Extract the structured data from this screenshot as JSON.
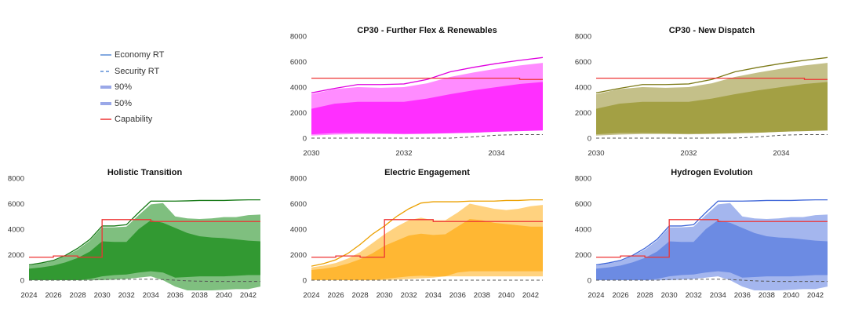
{
  "colors": {
    "capability": "#ee3333",
    "economy_dash": "#555555"
  },
  "legend": {
    "items": [
      {
        "label": "Economy RT",
        "style": "line",
        "color": "#5b8ed6"
      },
      {
        "label": "Security RT",
        "style": "dash",
        "color": "#5b8ed6"
      },
      {
        "label": "90%",
        "style": "thick",
        "color": "#9aa8e8"
      },
      {
        "label": "50%",
        "style": "thick",
        "color": "#9aa8e8"
      },
      {
        "label": "Capability",
        "style": "line",
        "color": "#ee3333"
      }
    ]
  },
  "chart_data": [
    {
      "type": "area",
      "title": "CP30 - Further Flex & Renewables",
      "xlim": [
        2030,
        2035
      ],
      "ylim": [
        0,
        8000
      ],
      "xticks": [
        2030,
        2032,
        2034
      ],
      "yticks": [
        0,
        2000,
        4000,
        6000,
        8000
      ],
      "colors": {
        "band90": "#ff8cff",
        "band50": "#ff2fff",
        "line": "#e000e0"
      },
      "x": [
        2030,
        2030.5,
        2031,
        2031.5,
        2032,
        2032.5,
        2033,
        2033.5,
        2034,
        2034.5,
        2035
      ],
      "economy_rt": [
        3550,
        3900,
        4200,
        4200,
        4250,
        4600,
        5200,
        5550,
        5850,
        6100,
        6320
      ],
      "p90_lower": [
        200,
        280,
        320,
        320,
        300,
        330,
        380,
        430,
        500,
        580,
        650
      ],
      "p90_upper": [
        3450,
        3850,
        4000,
        3950,
        4000,
        4300,
        4800,
        5150,
        5450,
        5700,
        5900
      ],
      "p50_lower": [
        300,
        400,
        400,
        380,
        350,
        360,
        390,
        420,
        500,
        550,
        600
      ],
      "p50_upper": [
        2300,
        2700,
        2850,
        2850,
        2850,
        3100,
        3450,
        3750,
        4000,
        4250,
        4400
      ],
      "security_rt": [
        0,
        0,
        0,
        0,
        0,
        0,
        0,
        100,
        230,
        280,
        280
      ],
      "capability": {
        "x": [
          2030,
          2034.5,
          2034.5,
          2035
        ],
        "y": [
          4700,
          4700,
          4600,
          4600
        ]
      }
    },
    {
      "type": "area",
      "title": "CP30 - New Dispatch",
      "xlim": [
        2030,
        2035
      ],
      "ylim": [
        0,
        8000
      ],
      "xticks": [
        2030,
        2032,
        2034
      ],
      "yticks": [
        0,
        2000,
        4000,
        6000,
        8000
      ],
      "colors": {
        "band90": "#c4c089",
        "band50": "#a3a044",
        "line": "#7c7a18"
      },
      "x": [
        2030,
        2030.5,
        2031,
        2031.5,
        2032,
        2032.5,
        2033,
        2033.5,
        2034,
        2034.5,
        2035
      ],
      "economy_rt": [
        3550,
        3900,
        4200,
        4200,
        4250,
        4600,
        5200,
        5550,
        5850,
        6100,
        6320
      ],
      "p90_lower": [
        200,
        280,
        320,
        320,
        300,
        330,
        380,
        430,
        500,
        580,
        650
      ],
      "p90_upper": [
        3450,
        3850,
        4000,
        3950,
        4000,
        4300,
        4800,
        5150,
        5450,
        5700,
        5900
      ],
      "p50_lower": [
        300,
        400,
        400,
        380,
        350,
        360,
        390,
        420,
        500,
        550,
        600
      ],
      "p50_upper": [
        2300,
        2700,
        2850,
        2850,
        2850,
        3100,
        3450,
        3750,
        4000,
        4250,
        4400
      ],
      "security_rt": [
        0,
        0,
        0,
        0,
        0,
        0,
        0,
        100,
        230,
        280,
        280
      ],
      "capability": {
        "x": [
          2030,
          2034.5,
          2034.5,
          2035
        ],
        "y": [
          4700,
          4700,
          4600,
          4600
        ]
      }
    },
    {
      "type": "area",
      "title": "Holistic Transition",
      "xlim": [
        2024,
        2043
      ],
      "ylim": [
        0,
        8000
      ],
      "xticks": [
        2024,
        2026,
        2028,
        2030,
        2032,
        2034,
        2036,
        2038,
        2040,
        2042
      ],
      "yticks": [
        0,
        2000,
        4000,
        6000,
        8000
      ],
      "colors": {
        "band90": "#7fbf7f",
        "band50": "#329932",
        "line": "#147814"
      },
      "x": [
        2024,
        2025,
        2026,
        2027,
        2028,
        2029,
        2030,
        2031,
        2032,
        2033,
        2034,
        2035,
        2036,
        2037,
        2038,
        2039,
        2040,
        2041,
        2042,
        2043
      ],
      "economy_rt": [
        1200,
        1350,
        1550,
        1950,
        2500,
        3200,
        4250,
        4250,
        4350,
        5300,
        6200,
        6200,
        6200,
        6220,
        6250,
        6250,
        6250,
        6280,
        6300,
        6300
      ],
      "p90_lower": [
        0,
        0,
        0,
        0,
        0,
        0,
        0,
        50,
        100,
        200,
        300,
        0,
        -500,
        -800,
        -800,
        -800,
        -750,
        -700,
        -700,
        -500
      ],
      "p90_upper": [
        1150,
        1300,
        1500,
        1900,
        2400,
        3100,
        4150,
        4150,
        4200,
        5100,
        5950,
        6050,
        5000,
        4850,
        4800,
        4850,
        4950,
        4950,
        5100,
        5150
      ],
      "p50_lower": [
        0,
        0,
        0,
        0,
        0,
        100,
        300,
        400,
        450,
        600,
        700,
        600,
        200,
        250,
        300,
        300,
        300,
        350,
        400,
        400
      ],
      "p50_upper": [
        900,
        1000,
        1150,
        1400,
        1750,
        2250,
        3050,
        3000,
        3000,
        4000,
        4700,
        4500,
        4100,
        3700,
        3450,
        3350,
        3300,
        3200,
        3100,
        3050
      ],
      "security_rt": [
        0,
        0,
        0,
        0,
        0,
        0,
        50,
        60,
        70,
        80,
        80,
        50,
        0,
        -50,
        -80,
        -100,
        -100,
        -100,
        -100,
        -100
      ],
      "capability": {
        "x": [
          2024,
          2026,
          2026,
          2028,
          2028,
          2030,
          2030,
          2034,
          2034,
          2043
        ],
        "y": [
          1800,
          1800,
          1900,
          1900,
          1800,
          1800,
          4750,
          4750,
          4600,
          4600
        ]
      }
    },
    {
      "type": "area",
      "title": "Electric Engagement",
      "xlim": [
        2024,
        2043
      ],
      "ylim": [
        0,
        8000
      ],
      "xticks": [
        2024,
        2026,
        2028,
        2030,
        2032,
        2034,
        2036,
        2038,
        2040,
        2042
      ],
      "yticks": [
        0,
        2000,
        4000,
        6000,
        8000
      ],
      "colors": {
        "band90": "#ffd27f",
        "band50": "#ffb733",
        "line": "#eba000"
      },
      "x": [
        2024,
        2025,
        2026,
        2027,
        2028,
        2029,
        2030,
        2031,
        2032,
        2033,
        2034,
        2035,
        2036,
        2037,
        2038,
        2039,
        2040,
        2041,
        2042,
        2043
      ],
      "economy_rt": [
        1100,
        1300,
        1600,
        2100,
        2800,
        3600,
        4250,
        5000,
        5600,
        6050,
        6150,
        6150,
        6150,
        6200,
        6200,
        6200,
        6250,
        6250,
        6300,
        6300
      ],
      "p90_lower": [
        0,
        0,
        0,
        0,
        0,
        0,
        0,
        50,
        100,
        150,
        200,
        300,
        300,
        300,
        300,
        300,
        300,
        300,
        300,
        300
      ],
      "p90_upper": [
        1000,
        1150,
        1350,
        1700,
        2200,
        2900,
        3600,
        4200,
        4700,
        4900,
        4700,
        4700,
        5300,
        6000,
        5800,
        5600,
        5500,
        5600,
        5800,
        5900
      ],
      "p50_lower": [
        0,
        0,
        0,
        0,
        0,
        0,
        100,
        200,
        300,
        350,
        300,
        300,
        600,
        700,
        700,
        700,
        700,
        700,
        700,
        700
      ],
      "p50_upper": [
        800,
        900,
        1050,
        1300,
        1650,
        2100,
        2700,
        3100,
        3500,
        3650,
        3550,
        3600,
        4200,
        4800,
        4700,
        4500,
        4400,
        4300,
        4200,
        4200
      ],
      "security_rt": [
        0,
        0,
        0,
        0,
        0,
        0,
        0,
        0,
        0,
        0,
        0,
        0,
        0,
        0,
        0,
        0,
        0,
        0,
        0,
        0
      ],
      "capability": {
        "x": [
          2024,
          2026,
          2026,
          2028,
          2028,
          2030,
          2030,
          2034,
          2034,
          2043
        ],
        "y": [
          1800,
          1800,
          1900,
          1900,
          1800,
          1800,
          4750,
          4750,
          4600,
          4600
        ]
      }
    },
    {
      "type": "area",
      "title": "Hydrogen Evolution",
      "xlim": [
        2024,
        2043
      ],
      "ylim": [
        0,
        8000
      ],
      "xticks": [
        2024,
        2026,
        2028,
        2030,
        2032,
        2034,
        2036,
        2038,
        2040,
        2042
      ],
      "yticks": [
        0,
        2000,
        4000,
        6000,
        8000
      ],
      "colors": {
        "band90": "#a4b6ee",
        "band50": "#6c8be3",
        "line": "#3f66d8"
      },
      "x": [
        2024,
        2025,
        2026,
        2027,
        2028,
        2029,
        2030,
        2031,
        2032,
        2033,
        2034,
        2035,
        2036,
        2037,
        2038,
        2039,
        2040,
        2041,
        2042,
        2043
      ],
      "economy_rt": [
        1200,
        1350,
        1550,
        1950,
        2500,
        3200,
        4250,
        4250,
        4350,
        5300,
        6200,
        6200,
        6200,
        6220,
        6250,
        6250,
        6250,
        6280,
        6300,
        6300
      ],
      "p90_lower": [
        0,
        0,
        0,
        0,
        0,
        0,
        0,
        50,
        100,
        200,
        300,
        0,
        -500,
        -800,
        -800,
        -800,
        -750,
        -700,
        -700,
        -500
      ],
      "p90_upper": [
        1150,
        1300,
        1500,
        1900,
        2400,
        3100,
        4150,
        4150,
        4200,
        5100,
        5950,
        6050,
        5000,
        4850,
        4800,
        4850,
        4950,
        4950,
        5100,
        5150
      ],
      "p50_lower": [
        0,
        0,
        0,
        0,
        0,
        100,
        300,
        400,
        450,
        600,
        700,
        600,
        200,
        250,
        300,
        300,
        300,
        350,
        400,
        400
      ],
      "p50_upper": [
        900,
        1000,
        1150,
        1400,
        1750,
        2250,
        3050,
        3000,
        3000,
        4000,
        4700,
        4500,
        4100,
        3700,
        3450,
        3350,
        3300,
        3200,
        3100,
        3050
      ],
      "security_rt": [
        0,
        0,
        0,
        0,
        0,
        0,
        50,
        60,
        70,
        80,
        80,
        50,
        0,
        -50,
        -80,
        -100,
        -100,
        -100,
        -100,
        -100
      ],
      "capability": {
        "x": [
          2024,
          2026,
          2026,
          2028,
          2028,
          2030,
          2030,
          2034,
          2034,
          2043
        ],
        "y": [
          1800,
          1800,
          1900,
          1900,
          1800,
          1800,
          4750,
          4750,
          4600,
          4600
        ]
      }
    }
  ]
}
